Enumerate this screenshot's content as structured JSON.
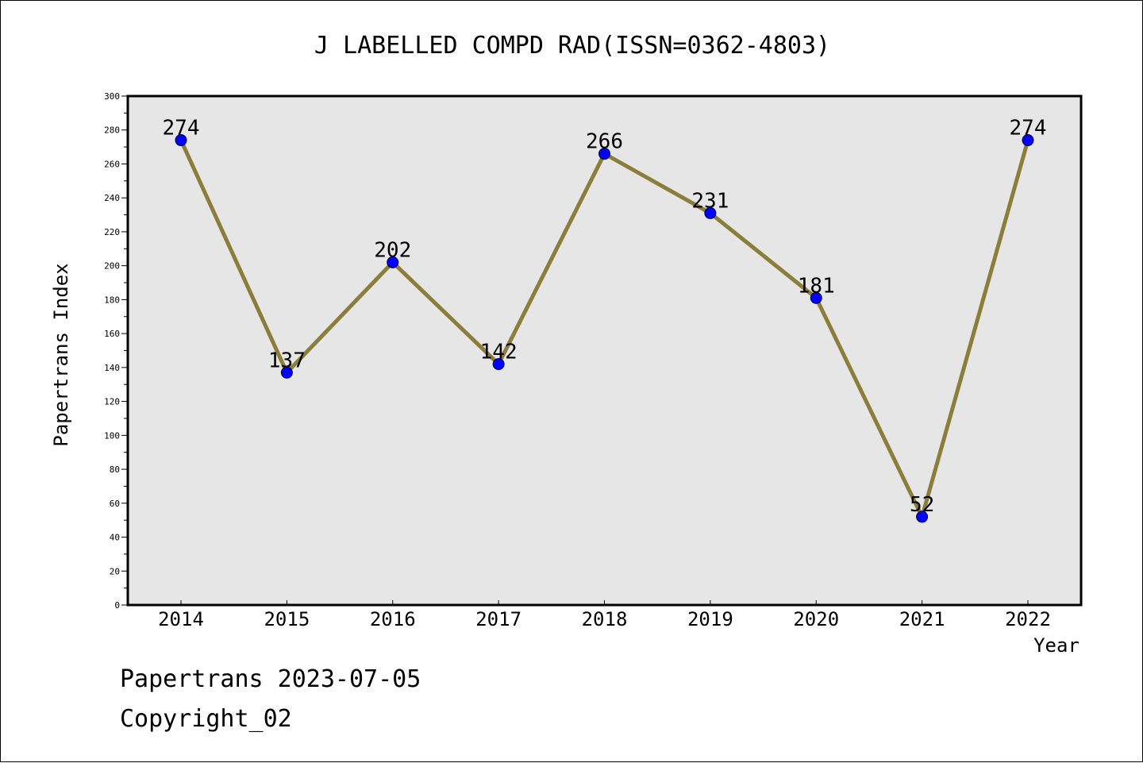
{
  "chart_data": {
    "type": "line",
    "title": "J LABELLED COMPD RAD(ISSN=0362-4803)",
    "xlabel": "Year",
    "ylabel": "Papertrans Index",
    "categories": [
      "2014",
      "2015",
      "2016",
      "2017",
      "2018",
      "2019",
      "2020",
      "2021",
      "2022"
    ],
    "values": [
      274,
      137,
      202,
      142,
      266,
      231,
      181,
      52,
      274
    ],
    "data_labels": [
      "274",
      "137",
      "202",
      "142",
      "266",
      "231",
      "181",
      "52",
      "274"
    ],
    "ylim": [
      0,
      300
    ],
    "yticks": [
      "0",
      "20",
      "40",
      "60",
      "80",
      "100",
      "120",
      "140",
      "160",
      "180",
      "200",
      "220",
      "240",
      "260",
      "280",
      "300"
    ],
    "grid": false,
    "colors": {
      "line": "#8B7D3A",
      "marker": "#0000FF",
      "plot_background": "#E6E6E6"
    }
  },
  "footer": {
    "line1": "Papertrans 2023-07-05",
    "line2": "Copyright_02"
  }
}
